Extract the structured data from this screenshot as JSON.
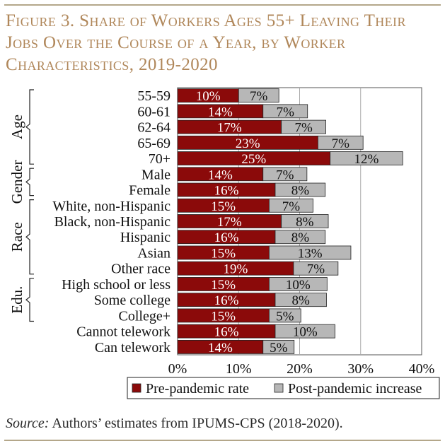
{
  "title": "Figure 3. Share of Workers Ages 55+ Leaving Their Jobs Over the Course of a Year, by Worker Characteristics, 2019-2020",
  "source_label": "Source:",
  "source_text": " Authors’ estimates from IPUMS-CPS (2018-2020).",
  "colors": {
    "pre": "#8b0a0a",
    "post": "#b7b7b7",
    "title": "#b0875a",
    "rule": "#b4a78a",
    "grid": "#a9a9a9"
  },
  "chart_data": {
    "type": "bar",
    "orientation": "horizontal",
    "stacked": true,
    "categories": [
      "55-59",
      "60-61",
      "62-64",
      "65-69",
      "70+",
      "Male",
      "Female",
      "White, non-Hispanic",
      "Black, non-Hispanic",
      "Hispanic",
      "Asian",
      "Other race",
      "High school or less",
      "Some college",
      "College+",
      "Cannot telework",
      "Can telework"
    ],
    "groups": [
      {
        "label": "Age",
        "from": 0,
        "to": 4
      },
      {
        "label": "Gender",
        "from": 5,
        "to": 6
      },
      {
        "label": "Race",
        "from": 7,
        "to": 11
      },
      {
        "label": "Edu.",
        "from": 12,
        "to": 14
      }
    ],
    "series": [
      {
        "name": "Pre-pandemic rate",
        "values": [
          10,
          14,
          17,
          23,
          25,
          14,
          16,
          15,
          17,
          16,
          15,
          19,
          15,
          16,
          15,
          16,
          14
        ],
        "labels": [
          "10%",
          "14%",
          "17%",
          "23%",
          "25%",
          "14%",
          "16%",
          "15%",
          "17%",
          "16%",
          "15%",
          "19%",
          "15%",
          "16%",
          "15%",
          "16%",
          "14%"
        ]
      },
      {
        "name": "Post-pandemic increase",
        "values": [
          6.6,
          7.3,
          7.3,
          7.4,
          11.9,
          7.2,
          8.2,
          7.2,
          7.7,
          8.2,
          13.4,
          7.3,
          9.5,
          8.4,
          5.2,
          9.8,
          5.1
        ],
        "labels": [
          "7%",
          "7%",
          "7%",
          "7%",
          "12%",
          "7%",
          "8%",
          "7%",
          "8%",
          "8%",
          "13%",
          "7%",
          "10%",
          "8%",
          "5%",
          "10%",
          "5%"
        ]
      }
    ],
    "xlim": [
      0,
      40
    ],
    "xticks": [
      0,
      10,
      20,
      30,
      40
    ],
    "xtick_labels": [
      "0%",
      "10%",
      "20%",
      "30%",
      "40%"
    ],
    "grid": true,
    "legend": "bottom"
  }
}
